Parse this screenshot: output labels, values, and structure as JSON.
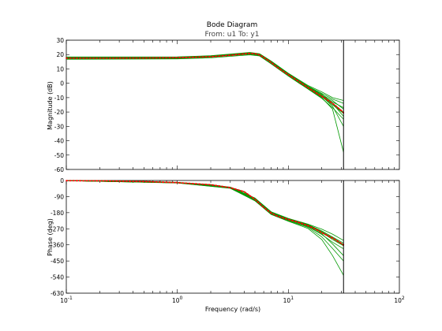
{
  "chart_data": {
    "type": "line",
    "title": "Bode Diagram",
    "subtitle": "From: u1  To: y1",
    "xlabel": "Frequency  (rad/s)",
    "x_scale": "log",
    "xlim": [
      0.1,
      100
    ],
    "x_ticks": [
      0.1,
      1,
      10,
      100
    ],
    "x_tick_base": "10",
    "x_tick_exponents": [
      "-1",
      "0",
      "1",
      "2"
    ],
    "nyquist_frequency": 31.4,
    "grid": false,
    "colors": {
      "uncertain": "#009900",
      "nominal": "#ff0000",
      "axes": "#000000"
    },
    "magnitude": {
      "ylabel": "Magnitude  (dB)",
      "ylim": [
        -60,
        30
      ],
      "y_ticks": [
        30,
        20,
        10,
        0,
        -10,
        -20,
        -30,
        -40,
        -50,
        -60
      ],
      "nominal": {
        "x": [
          0.1,
          0.2,
          0.5,
          1,
          2,
          3,
          4,
          4.5,
          5,
          5.5,
          6,
          7,
          8,
          10,
          12,
          15,
          18,
          20,
          25,
          30,
          31.4
        ],
        "y": [
          17.5,
          17.5,
          17.6,
          17.8,
          18.5,
          19.5,
          20.5,
          20.8,
          20.6,
          19.8,
          18,
          14.5,
          11,
          6,
          2,
          -3,
          -7,
          -9,
          -14,
          -19,
          -20.5
        ]
      },
      "samples": [
        {
          "x": [
            0.1,
            1,
            2,
            4.5,
            5.5,
            7,
            10,
            15,
            20,
            25,
            31.4
          ],
          "y": [
            17.0,
            17.3,
            18.2,
            20.4,
            19.6,
            14.0,
            5.5,
            -3.5,
            -9.5,
            -15,
            -21
          ]
        },
        {
          "x": [
            0.1,
            1,
            2,
            4.5,
            5.5,
            7,
            10,
            15,
            20,
            25,
            31.4
          ],
          "y": [
            18.0,
            18.2,
            19.0,
            21.2,
            20.3,
            15.2,
            6.8,
            -2.0,
            -7.0,
            -11,
            -14
          ]
        },
        {
          "x": [
            0.1,
            1,
            2,
            4.5,
            5.5,
            7,
            10,
            15,
            20,
            25,
            31.4
          ],
          "y": [
            16.7,
            17.0,
            17.7,
            19.8,
            19.0,
            13.5,
            5.0,
            -4.0,
            -10.5,
            -17,
            -25
          ]
        },
        {
          "x": [
            0.1,
            1,
            2,
            4.5,
            5.5,
            7,
            10,
            15,
            20,
            25,
            31.4
          ],
          "y": [
            18.3,
            18.4,
            19.2,
            21.5,
            20.6,
            15.5,
            7.0,
            -1.5,
            -6.0,
            -10,
            -12
          ]
        },
        {
          "x": [
            0.1,
            1,
            2,
            4.5,
            5.5,
            7,
            10,
            15,
            20,
            25,
            31.4
          ],
          "y": [
            17.2,
            17.6,
            18.4,
            20.5,
            19.8,
            14.3,
            5.8,
            -3.2,
            -9.0,
            -16,
            -30
          ]
        },
        {
          "x": [
            0.1,
            1,
            2,
            4.5,
            5.5,
            7,
            10,
            15,
            20,
            25,
            31.4
          ],
          "y": [
            17.4,
            17.7,
            18.6,
            20.6,
            19.9,
            14.6,
            6.0,
            -2.8,
            -8.5,
            -13,
            -17
          ]
        },
        {
          "x": [
            0.1,
            1,
            2,
            4.5,
            5.5,
            7,
            10,
            15,
            20,
            25,
            31.4
          ],
          "y": [
            17.6,
            17.9,
            18.7,
            20.9,
            20.0,
            14.8,
            6.2,
            -2.5,
            -8.0,
            -12,
            -18
          ]
        },
        {
          "x": [
            0.1,
            1,
            2,
            4.5,
            5.5,
            7,
            10,
            15,
            20,
            25,
            31.4
          ],
          "y": [
            17.1,
            17.5,
            18.3,
            20.2,
            19.4,
            14.1,
            5.6,
            -3.8,
            -10.0,
            -18,
            -48
          ]
        },
        {
          "x": [
            0.1,
            1,
            2,
            4.5,
            5.5,
            7,
            10,
            15,
            20,
            25,
            31.4
          ],
          "y": [
            17.8,
            18.0,
            18.9,
            21.0,
            20.1,
            15.0,
            6.5,
            -2.2,
            -7.5,
            -14,
            -23
          ]
        }
      ]
    },
    "phase": {
      "ylabel": "Phase  (deg)",
      "ylim": [
        -630,
        0
      ],
      "y_ticks": [
        0,
        -90,
        -180,
        -270,
        -360,
        -450,
        -540,
        -630
      ],
      "nominal": {
        "x": [
          0.1,
          0.2,
          0.5,
          1,
          2,
          3,
          4,
          5,
          6,
          7,
          8,
          10,
          12,
          15,
          18,
          20,
          25,
          30,
          31.4
        ],
        "y": [
          -1,
          -2,
          -6,
          -12,
          -24,
          -40,
          -63,
          -105,
          -150,
          -182,
          -200,
          -218,
          -232,
          -252,
          -275,
          -292,
          -322,
          -352,
          -360
        ]
      },
      "samples": [
        {
          "x": [
            0.1,
            1,
            3,
            5,
            7,
            10,
            15,
            20,
            25,
            31.4
          ],
          "y": [
            -1,
            -12,
            -38,
            -100,
            -178,
            -214,
            -246,
            -282,
            -316,
            -350
          ]
        },
        {
          "x": [
            0.1,
            1,
            3,
            5,
            7,
            10,
            15,
            20,
            25,
            31.4
          ],
          "y": [
            -1,
            -13,
            -42,
            -110,
            -186,
            -222,
            -258,
            -302,
            -345,
            -382
          ]
        },
        {
          "x": [
            0.1,
            1,
            3,
            5,
            7,
            10,
            15,
            20,
            25,
            31.4
          ],
          "y": [
            -1,
            -11,
            -37,
            -98,
            -175,
            -212,
            -244,
            -272,
            -300,
            -335
          ]
        },
        {
          "x": [
            0.1,
            1,
            3,
            5,
            7,
            10,
            15,
            20,
            25,
            31.4
          ],
          "y": [
            -1,
            -14,
            -44,
            -112,
            -188,
            -225,
            -262,
            -315,
            -380,
            -450
          ]
        },
        {
          "x": [
            0.1,
            1,
            3,
            5,
            7,
            10,
            15,
            20,
            25,
            31.4
          ],
          "y": [
            -1,
            -12,
            -41,
            -106,
            -183,
            -219,
            -252,
            -290,
            -330,
            -365
          ]
        },
        {
          "x": [
            0.1,
            1,
            3,
            5,
            7,
            10,
            15,
            20,
            25,
            31.4
          ],
          "y": [
            -1,
            -13,
            -43,
            -114,
            -190,
            -228,
            -268,
            -330,
            -420,
            -530
          ]
        },
        {
          "x": [
            0.1,
            1,
            3,
            5,
            7,
            10,
            15,
            20,
            25,
            31.4
          ],
          "y": [
            -1,
            -12,
            -39,
            -102,
            -180,
            -216,
            -248,
            -286,
            -322,
            -358
          ]
        },
        {
          "x": [
            0.1,
            1,
            3,
            5,
            7,
            10,
            15,
            20,
            25,
            31.4
          ],
          "y": [
            -1,
            -12,
            -40,
            -104,
            -181,
            -218,
            -255,
            -298,
            -355,
            -420
          ]
        }
      ]
    }
  }
}
